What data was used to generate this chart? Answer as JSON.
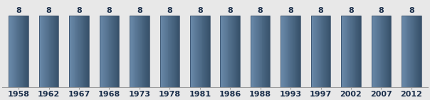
{
  "categories": [
    "1958",
    "1962",
    "1967",
    "1968",
    "1973",
    "1978",
    "1981",
    "1986",
    "1988",
    "1993",
    "1997",
    "2002",
    "2007",
    "2012"
  ],
  "values": [
    8,
    8,
    8,
    8,
    8,
    8,
    8,
    8,
    8,
    8,
    8,
    8,
    8,
    8
  ],
  "bar_color_main": "#4e6d8c",
  "bar_color_light": "#6a8aaa",
  "bar_color_dark": "#354f68",
  "bar_edge_color": "#2e4560",
  "ylim": [
    0,
    9.5
  ],
  "label_fontsize": 8,
  "value_fontsize": 8,
  "background_color": "#e8e8e8",
  "plot_bg_color": "#e8e8e8",
  "bar_width": 0.65,
  "xlabel_color": "#1a2e4a",
  "value_color": "#1a2e4a"
}
